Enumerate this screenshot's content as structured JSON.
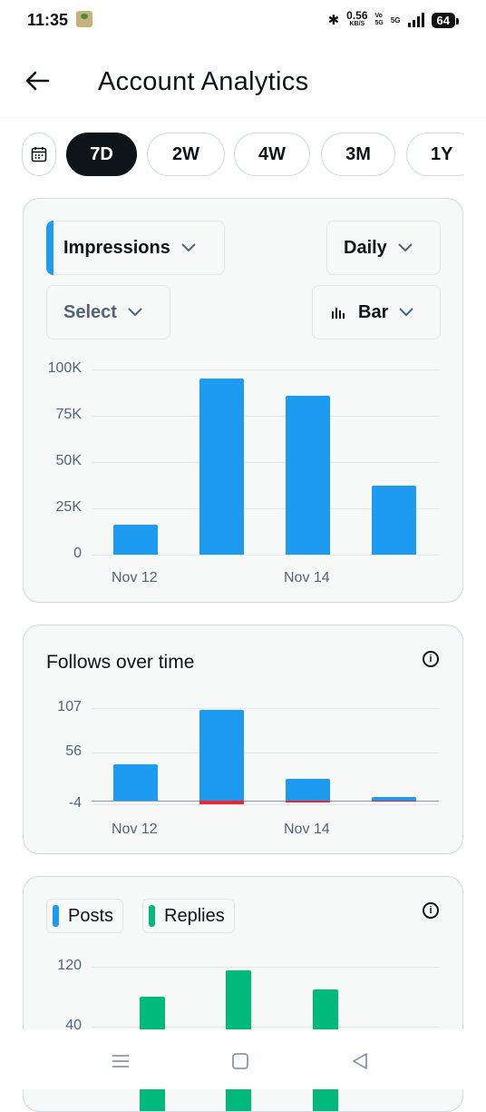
{
  "status_bar": {
    "time": "11:35",
    "speed_value": "0.56",
    "speed_unit": "KB/S",
    "vo_top": "Vo",
    "vo_bottom": "5G",
    "network": "5G",
    "battery": "64"
  },
  "header": {
    "title": "Account Analytics",
    "back_icon": "arrow-left-icon"
  },
  "range": {
    "calendar_icon": "calendar-icon",
    "options": [
      "7D",
      "2W",
      "4W",
      "3M",
      "1Y"
    ],
    "selected": "7D"
  },
  "impressions_card": {
    "metric_dropdown": "Impressions",
    "interval_dropdown": "Daily",
    "compare_dropdown": "Select",
    "chart_type_dropdown": "Bar",
    "accent": "#1d9bf0"
  },
  "follows_card": {
    "title": "Follows over time"
  },
  "posts_card": {
    "legend": [
      {
        "label": "Posts",
        "color": "#1d9bf0"
      },
      {
        "label": "Replies",
        "color": "#00ba7c"
      }
    ]
  },
  "chart_data": [
    {
      "type": "bar",
      "title": "",
      "series": [
        {
          "values": [
            16000,
            95000,
            86000,
            37500
          ]
        }
      ],
      "x_tick_labels": [
        "Nov 12",
        "",
        "Nov 14",
        ""
      ],
      "y_ticks": [
        "100K",
        "75K",
        "50K",
        "25K",
        "0"
      ],
      "ylim": [
        0,
        100000
      ],
      "grid": true,
      "color": "#1d9bf0"
    },
    {
      "type": "bar",
      "title": "Follows over time",
      "series": [
        {
          "values": [
            42,
            105,
            25,
            4
          ],
          "color": "#1d9bf0"
        },
        {
          "values": [
            0,
            -4,
            -2,
            -1
          ],
          "color": "#f4212e"
        }
      ],
      "x_tick_labels": [
        "Nov 12",
        "",
        "Nov 14",
        ""
      ],
      "y_ticks": [
        "107",
        "56",
        "-4"
      ],
      "ylim": [
        -4,
        107
      ],
      "grid": true
    },
    {
      "type": "bar",
      "series": [
        {
          "name": "Posts",
          "values": [],
          "color": "#1d9bf0"
        },
        {
          "name": "Replies",
          "values": [
            80,
            115,
            90
          ],
          "color": "#00ba7c"
        }
      ],
      "y_ticks": [
        "120",
        "40"
      ],
      "grid": true
    }
  ],
  "nav_bar": {
    "icons": [
      "menu-icon",
      "home-square-icon",
      "back-triangle-icon"
    ]
  }
}
